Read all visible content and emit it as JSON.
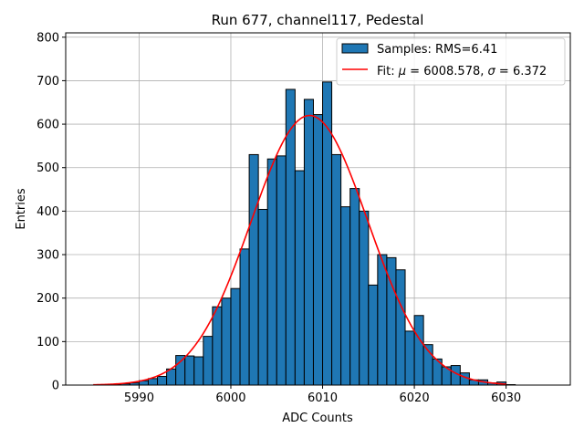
{
  "chart_data": {
    "type": "bar",
    "title": "Run 677, channel117, Pedestal",
    "xlabel": "ADC Counts",
    "ylabel": "Entries",
    "xlim": [
      5982,
      6037
    ],
    "ylim": [
      0,
      810
    ],
    "xticks": [
      5990,
      6000,
      6010,
      6020,
      6030
    ],
    "yticks": [
      0,
      100,
      200,
      300,
      400,
      500,
      600,
      700,
      800
    ],
    "grid": true,
    "legend_position": "top-right",
    "colors": {
      "bars": "#1f77b4",
      "bar_edge": "#000000",
      "fit": "#ff0000",
      "grid": "#b0b0b0"
    },
    "histogram": {
      "name": "Samples: RMS=6.41",
      "bin_edges_start": 5987,
      "bin_width": 1,
      "values": [
        2,
        3,
        5,
        10,
        15,
        20,
        37,
        68,
        67,
        65,
        112,
        180,
        200,
        222,
        313,
        530,
        404,
        520,
        527,
        680,
        493,
        657,
        622,
        697,
        530,
        410,
        452,
        400,
        230,
        300,
        293,
        265,
        124,
        160,
        93,
        60,
        42,
        45,
        28,
        12,
        12,
        5,
        7,
        1
      ]
    },
    "fit": {
      "name_prefix": "Fit: ",
      "mu_label": "μ",
      "mu_value": "6008.578",
      "sigma_label": "σ",
      "sigma_value": "6.372",
      "mu": 6008.578,
      "sigma": 6.372,
      "amplitude": 620,
      "x_range": [
        5985,
        6030
      ]
    }
  }
}
